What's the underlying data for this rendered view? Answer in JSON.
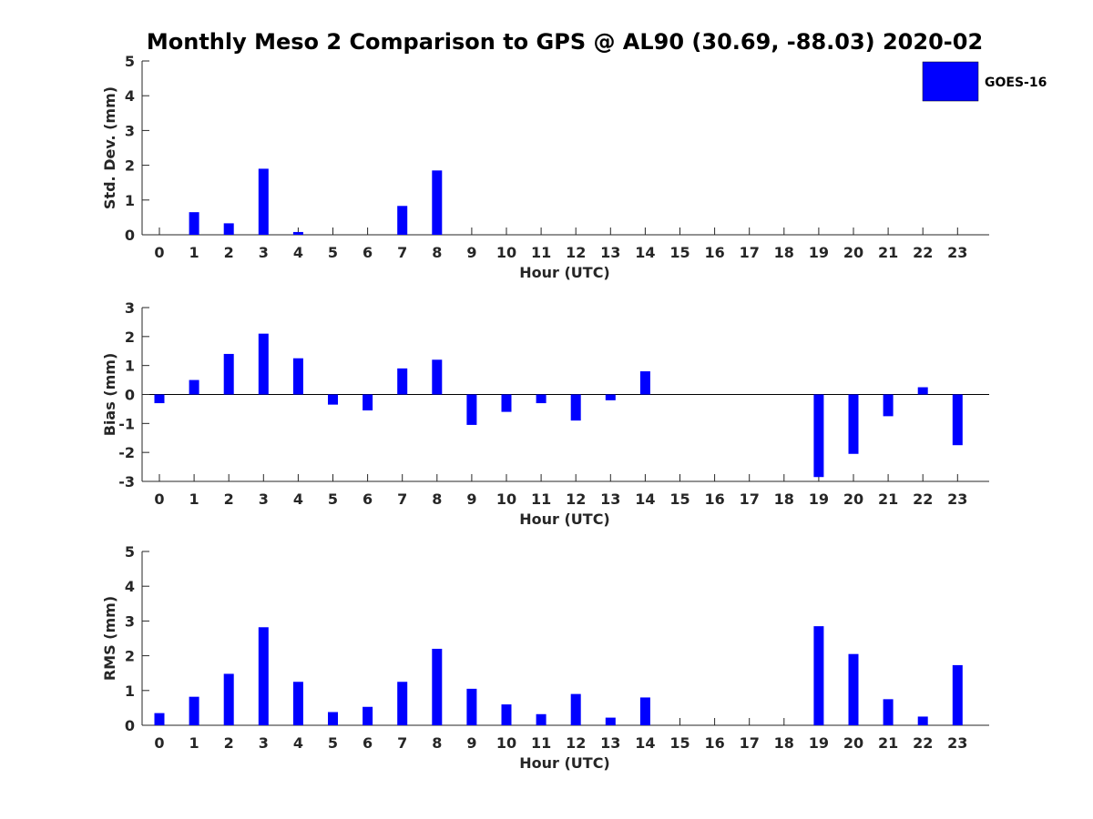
{
  "title": "Monthly Meso 2 Comparison to GPS @ AL90 (30.69, -88.03) 2020-02",
  "legend": {
    "label": "GOES-16",
    "color": "#0000ff"
  },
  "chart_data": [
    {
      "type": "bar",
      "title": "Monthly Meso 2 Comparison to GPS @ AL90 (30.69, -88.03) 2020-02",
      "xlabel": "Hour (UTC)",
      "ylabel": "Std. Dev. (mm)",
      "ylim": [
        0,
        5
      ],
      "yticks": [
        0,
        1,
        2,
        3,
        4,
        5
      ],
      "categories": [
        "0",
        "1",
        "2",
        "3",
        "4",
        "5",
        "6",
        "7",
        "8",
        "9",
        "10",
        "11",
        "12",
        "13",
        "14",
        "15",
        "16",
        "17",
        "18",
        "19",
        "20",
        "21",
        "22",
        "23"
      ],
      "series": [
        {
          "name": "GOES-16",
          "values": [
            0,
            0.65,
            0.33,
            1.9,
            0.08,
            0,
            0,
            0.83,
            1.85,
            0,
            0,
            0,
            0,
            0,
            0,
            0,
            0,
            0,
            0,
            0,
            0,
            0,
            0,
            0
          ]
        }
      ]
    },
    {
      "type": "bar",
      "xlabel": "Hour (UTC)",
      "ylabel": "Bias (mm)",
      "ylim": [
        -3,
        3
      ],
      "yticks": [
        -3,
        -2,
        -1,
        0,
        1,
        2,
        3
      ],
      "categories": [
        "0",
        "1",
        "2",
        "3",
        "4",
        "5",
        "6",
        "7",
        "8",
        "9",
        "10",
        "11",
        "12",
        "13",
        "14",
        "15",
        "16",
        "17",
        "18",
        "19",
        "20",
        "21",
        "22",
        "23"
      ],
      "series": [
        {
          "name": "GOES-16",
          "values": [
            -0.3,
            0.5,
            1.4,
            2.1,
            1.25,
            -0.35,
            -0.55,
            0.9,
            1.2,
            -1.05,
            -0.6,
            -0.3,
            -0.9,
            -0.2,
            0.8,
            0,
            0,
            0,
            0,
            -2.85,
            -2.05,
            -0.75,
            0.25,
            -1.75
          ]
        }
      ]
    },
    {
      "type": "bar",
      "xlabel": "Hour (UTC)",
      "ylabel": "RMS (mm)",
      "ylim": [
        0,
        5
      ],
      "yticks": [
        0,
        1,
        2,
        3,
        4,
        5
      ],
      "categories": [
        "0",
        "1",
        "2",
        "3",
        "4",
        "5",
        "6",
        "7",
        "8",
        "9",
        "10",
        "11",
        "12",
        "13",
        "14",
        "15",
        "16",
        "17",
        "18",
        "19",
        "20",
        "21",
        "22",
        "23"
      ],
      "series": [
        {
          "name": "GOES-16",
          "values": [
            0.35,
            0.82,
            1.48,
            2.82,
            1.25,
            0.38,
            0.53,
            1.25,
            2.2,
            1.05,
            0.6,
            0.32,
            0.9,
            0.22,
            0.8,
            0,
            0,
            0,
            0,
            2.85,
            2.05,
            0.75,
            0.25,
            1.73
          ]
        }
      ]
    }
  ]
}
